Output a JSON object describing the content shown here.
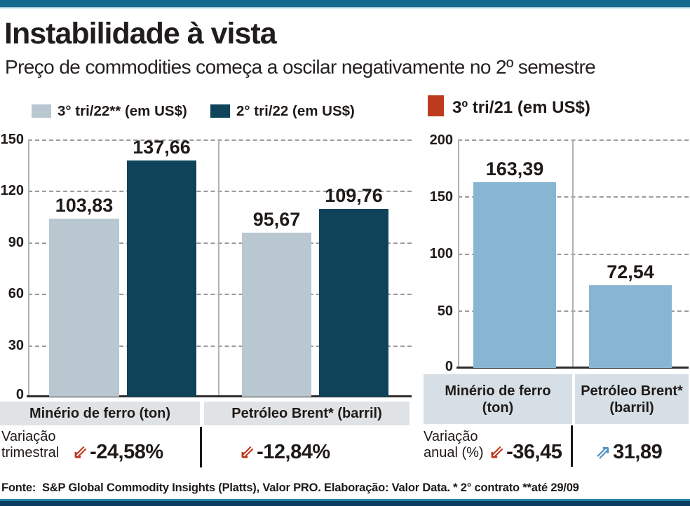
{
  "page": {
    "title": "Instabilidade à vista",
    "subtitle": "Preço de commodities começa a oscilar negativamente no 2º semestre"
  },
  "legend": [
    {
      "label": "3° tri/22** (em US$)",
      "color": "#b8c7d0"
    },
    {
      "label": "2° tri/22 (em US$)",
      "color": "#0e435a"
    },
    {
      "label": "3º tri/21 (em US$)",
      "color": "#bd3a1f"
    }
  ],
  "icons": {
    "down_arrow": "⇙",
    "up_arrow": "⇗"
  },
  "chart_data": [
    {
      "id": "variacao-trimestral",
      "type": "bar",
      "categories": [
        "Minério de ferro (ton)",
        "Petróleo Brent* (barril)"
      ],
      "series": [
        {
          "name": "3° tri/22** (em US$)",
          "values": [
            103.83,
            95.67
          ],
          "color": "#b8c7d0"
        },
        {
          "name": "2° tri/22 (em US$)",
          "values": [
            137.66,
            109.76
          ],
          "color": "#0e435a"
        }
      ],
      "value_labels": [
        [
          "103,83",
          "95,67"
        ],
        [
          "137,66",
          "109,76"
        ]
      ],
      "ylim": [
        0,
        150
      ],
      "yticks": [
        150,
        120,
        90,
        60,
        30,
        0
      ],
      "grid": "horizontal-dashed",
      "legend_position": "top"
    },
    {
      "id": "variacao-anual",
      "type": "bar",
      "categories": [
        "Minério de ferro (ton)",
        "Petróleo Brent* (barril)"
      ],
      "category_lines": [
        [
          "Minério de ferro",
          "(ton)"
        ],
        [
          "Petróleo Brent*",
          "(barril)"
        ]
      ],
      "series": [
        {
          "name": "3º tri/21 (em US$)",
          "values": [
            163.39,
            72.54
          ],
          "color": "#88b6d2"
        }
      ],
      "value_labels": [
        "163,39",
        "72,54"
      ],
      "ylim": [
        0,
        200
      ],
      "yticks": [
        200,
        150,
        100,
        50,
        0
      ],
      "grid": "horizontal-dashed",
      "legend_position": "top"
    }
  ],
  "variation": {
    "quarterly": {
      "label_lines": [
        "Variação",
        "trimestral"
      ],
      "items": [
        {
          "direction": "down",
          "value": "-24,58%"
        },
        {
          "direction": "down",
          "value": "-12,84%"
        }
      ]
    },
    "annual": {
      "label_lines": [
        "Variação",
        "anual (%)"
      ],
      "items": [
        {
          "direction": "down",
          "value": "-36,45"
        },
        {
          "direction": "up",
          "value": "31,89"
        }
      ]
    }
  },
  "footer": {
    "source": "Fonte:  S&P Global Commodity Insights (Platts), Valor PRO. Elaboração: Valor Data. * 2° contrato **até 29/09"
  },
  "colors": {
    "negative": "#bd3a1f",
    "positive": "#4d92c3",
    "top_bar": "#15698e",
    "bottom_bar": "#0c3c60",
    "band_left": "#e0e3e5",
    "band_right": "#d6dfe5"
  }
}
